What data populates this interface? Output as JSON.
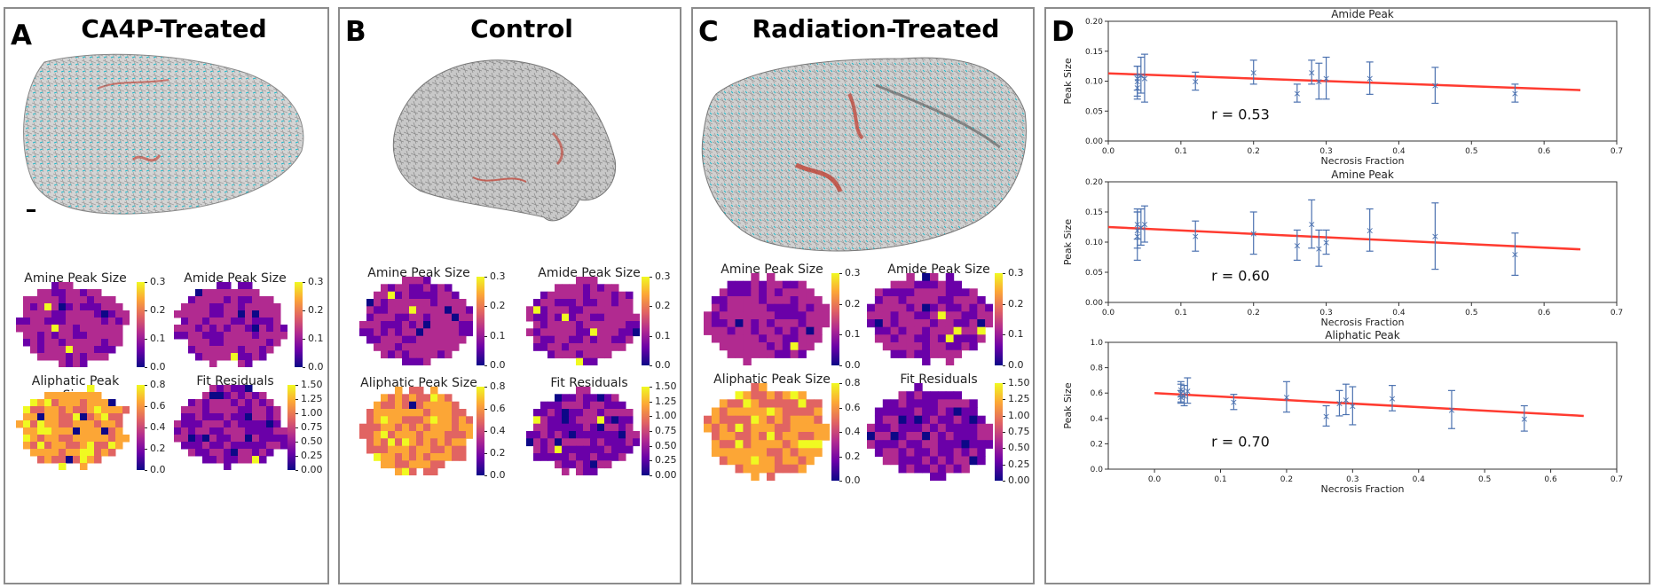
{
  "panels": [
    {
      "letter": "A",
      "title": "CA4P-Treated"
    },
    {
      "letter": "B",
      "title": "Control"
    },
    {
      "letter": "C",
      "title": "Radiation-Treated"
    }
  ],
  "map_titles": [
    "Amine Peak Size",
    "Amide Peak Size",
    "Aliphatic Peak Size",
    "Fit Residuals"
  ],
  "colorbar_ticks": {
    "amine": [
      "0.3",
      "0.2",
      "0.1",
      "0.0"
    ],
    "amide": [
      "0.3",
      "0.2",
      "0.1",
      "0.0"
    ],
    "aliphatic": [
      "0.8",
      "0.6",
      "0.4",
      "0.2",
      "0.0"
    ],
    "residuals": [
      "1.50",
      "1.25",
      "1.00",
      "0.75",
      "0.50",
      "0.25",
      "0.00"
    ]
  },
  "colors": {
    "plasma": [
      "#0d0887",
      "#6a00a8",
      "#b12a90",
      "#e16462",
      "#fca636",
      "#f0f921"
    ],
    "fit_line": "#ff3b30",
    "points": "#4c72b0",
    "tissue_stain_red": "#c0392b",
    "tissue_stain_cyan": "#18b7c8"
  },
  "panel_d": {
    "letter": "D"
  },
  "chart_data": [
    {
      "type": "scatter",
      "title": "Amide Peak",
      "xlabel": "Necrosis Fraction",
      "ylabel": "Peak Size",
      "xlim": [
        0.0,
        0.7
      ],
      "ylim": [
        0.0,
        0.2
      ],
      "xticks": [
        "0.0",
        "0.1",
        "0.2",
        "0.3",
        "0.4",
        "0.5",
        "0.6",
        "0.7"
      ],
      "yticks": [
        "0.00",
        "0.05",
        "0.10",
        "0.15",
        "0.20"
      ],
      "annotation": "r = 0.53",
      "x": [
        0.04,
        0.04,
        0.04,
        0.045,
        0.05,
        0.12,
        0.2,
        0.26,
        0.28,
        0.29,
        0.3,
        0.36,
        0.45,
        0.56
      ],
      "y": [
        0.09,
        0.1,
        0.105,
        0.11,
        0.105,
        0.1,
        0.115,
        0.08,
        0.115,
        0.1,
        0.105,
        0.105,
        0.093,
        0.08
      ],
      "err": [
        0.02,
        0.025,
        0.02,
        0.03,
        0.04,
        0.015,
        0.02,
        0.015,
        0.02,
        0.03,
        0.035,
        0.027,
        0.03,
        0.015
      ],
      "fit": {
        "x": [
          0.0,
          0.65
        ],
        "y": [
          0.113,
          0.085
        ]
      }
    },
    {
      "type": "scatter",
      "title": "Amine Peak",
      "xlabel": "Necrosis Fraction",
      "ylabel": "Peak Size",
      "xlim": [
        0.0,
        0.7
      ],
      "ylim": [
        0.0,
        0.2
      ],
      "xticks": [
        "0.0",
        "0.1",
        "0.2",
        "0.3",
        "0.4",
        "0.5",
        "0.6",
        "0.7"
      ],
      "yticks": [
        "0.00",
        "0.05",
        "0.10",
        "0.15",
        "0.20"
      ],
      "annotation": "r = 0.60",
      "x": [
        0.04,
        0.04,
        0.04,
        0.045,
        0.05,
        0.12,
        0.2,
        0.26,
        0.28,
        0.29,
        0.3,
        0.36,
        0.45,
        0.56
      ],
      "y": [
        0.11,
        0.12,
        0.13,
        0.125,
        0.13,
        0.11,
        0.115,
        0.095,
        0.13,
        0.09,
        0.1,
        0.12,
        0.11,
        0.08
      ],
      "err": [
        0.04,
        0.03,
        0.025,
        0.03,
        0.03,
        0.025,
        0.035,
        0.025,
        0.04,
        0.03,
        0.02,
        0.035,
        0.055,
        0.035
      ],
      "fit": {
        "x": [
          0.0,
          0.65
        ],
        "y": [
          0.125,
          0.088
        ]
      }
    },
    {
      "type": "scatter",
      "title": "Aliphatic Peak",
      "xlabel": "Necrosis Fraction",
      "ylabel": "Peak Size",
      "xlim": [
        -0.07,
        0.7
      ],
      "ylim": [
        0.0,
        1.0
      ],
      "xticks": [
        "0.0",
        "0.1",
        "0.2",
        "0.3",
        "0.4",
        "0.5",
        "0.6",
        "0.7"
      ],
      "yticks": [
        "0.0",
        "0.2",
        "0.4",
        "0.6",
        "0.8",
        "1.0"
      ],
      "annotation": "r = 0.70",
      "x": [
        0.04,
        0.04,
        0.04,
        0.045,
        0.05,
        0.12,
        0.2,
        0.26,
        0.28,
        0.29,
        0.3,
        0.36,
        0.45,
        0.56
      ],
      "y": [
        0.57,
        0.6,
        0.63,
        0.58,
        0.62,
        0.53,
        0.57,
        0.42,
        0.52,
        0.55,
        0.5,
        0.56,
        0.47,
        0.4
      ],
      "err": [
        0.05,
        0.07,
        0.06,
        0.08,
        0.1,
        0.06,
        0.12,
        0.08,
        0.1,
        0.12,
        0.15,
        0.1,
        0.15,
        0.1
      ],
      "fit": {
        "x": [
          0.0,
          0.65
        ],
        "y": [
          0.6,
          0.42
        ]
      }
    }
  ]
}
